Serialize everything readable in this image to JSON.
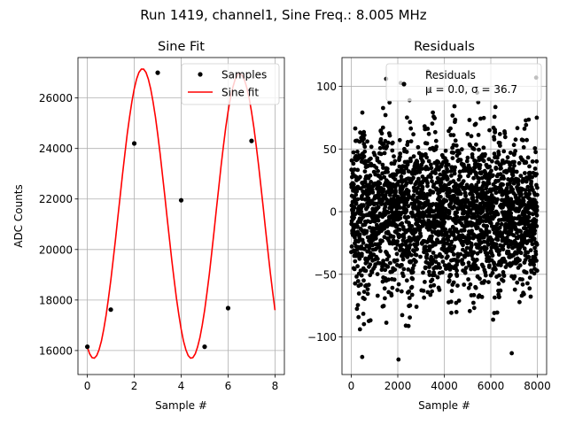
{
  "suptitle": "Run 1419, channel1, Sine Freq.: 8.005 MHz",
  "chart_data": [
    {
      "type": "line",
      "title": "Sine Fit",
      "xlabel": "Sample #",
      "ylabel": "ADC Counts",
      "xlim": [
        -0.4,
        8.4
      ],
      "ylim": [
        15050,
        27600
      ],
      "xticks": [
        0,
        2,
        4,
        6,
        8
      ],
      "xtick_labels": [
        "0",
        "2",
        "4",
        "6",
        "8"
      ],
      "yticks": [
        16000,
        18000,
        20000,
        22000,
        24000,
        26000
      ],
      "ytick_labels": [
        "16000",
        "18000",
        "20000",
        "22000",
        "24000",
        "26000"
      ],
      "grid": true,
      "legend": "top-right",
      "series": [
        {
          "name": "Samples",
          "kind": "scatter",
          "color": "#000000",
          "x": [
            0,
            1,
            2,
            3,
            4,
            5,
            6,
            7
          ],
          "y": [
            16150,
            17620,
            24200,
            27000,
            21950,
            16150,
            17680,
            24300
          ]
        },
        {
          "name": "Sine fit",
          "kind": "line",
          "color": "#ff0000",
          "x": [
            0.0,
            0.1,
            0.2,
            0.3,
            0.4,
            0.5,
            0.6,
            0.7,
            0.8,
            0.9,
            1.0,
            1.1,
            1.2,
            1.3,
            1.4,
            1.5,
            1.6,
            1.7,
            1.8,
            1.9,
            2.0,
            2.1,
            2.2,
            2.3,
            2.4,
            2.5,
            2.6,
            2.7,
            2.8,
            2.9,
            3.0,
            3.1,
            3.2,
            3.3,
            3.4,
            3.5,
            3.6,
            3.7,
            3.8,
            3.9,
            4.0,
            4.1,
            4.2,
            4.3,
            4.4,
            4.5,
            4.6,
            4.7,
            4.8,
            4.9,
            5.0,
            5.1,
            5.2,
            5.3,
            5.4,
            5.5,
            5.6,
            5.7,
            5.8,
            5.9,
            6.0,
            6.1,
            6.2,
            6.3,
            6.4,
            6.5,
            6.6,
            6.7,
            6.8,
            6.9,
            7.0,
            7.1,
            7.2,
            7.3,
            7.4,
            7.5,
            7.6,
            7.7,
            7.8,
            7.9,
            8.0
          ],
          "y": [
            16140,
            15870,
            15720,
            15700,
            15800,
            16030,
            16380,
            16840,
            17410,
            18060,
            18790,
            19580,
            20410,
            21270,
            22130,
            22980,
            23800,
            24570,
            25260,
            25860,
            26360,
            26750,
            27010,
            27140,
            27140,
            27010,
            26750,
            26360,
            25860,
            25260,
            24570,
            23800,
            22980,
            22130,
            21270,
            20410,
            19580,
            18790,
            18060,
            17410,
            16840,
            16380,
            16030,
            15800,
            15700,
            15720,
            15870,
            16140,
            16520,
            17010,
            17600,
            18280,
            19030,
            19850,
            20710,
            21580,
            22450,
            23300,
            24100,
            24830,
            25470,
            26000,
            26420,
            26730,
            26910,
            26970,
            26900,
            26710,
            26400,
            25980,
            25450,
            24820,
            24110,
            23330,
            22500,
            21640,
            20770,
            19910,
            19090,
            18310,
            17600
          ]
        }
      ]
    },
    {
      "type": "scatter",
      "title": "Residuals",
      "xlabel": "Sample #",
      "ylabel": "",
      "xlim": [
        -400,
        8400
      ],
      "ylim": [
        -130,
        123
      ],
      "xticks": [
        0,
        2000,
        4000,
        6000,
        8000
      ],
      "xtick_labels": [
        "0",
        "2000",
        "4000",
        "6000",
        "8000"
      ],
      "yticks": [
        -100,
        -50,
        0,
        50,
        100
      ],
      "ytick_labels": [
        "−100",
        "−50",
        "0",
        "50",
        "100"
      ],
      "grid": true,
      "legend": "top-right",
      "series": [
        {
          "name": "Residuals",
          "legend_label_line2": "μ = 0.0, σ = 36.7",
          "color": "#000000",
          "n_points": 8000,
          "mean": 0.0,
          "std": 36.7,
          "range": [
            -118,
            112
          ]
        }
      ]
    }
  ]
}
